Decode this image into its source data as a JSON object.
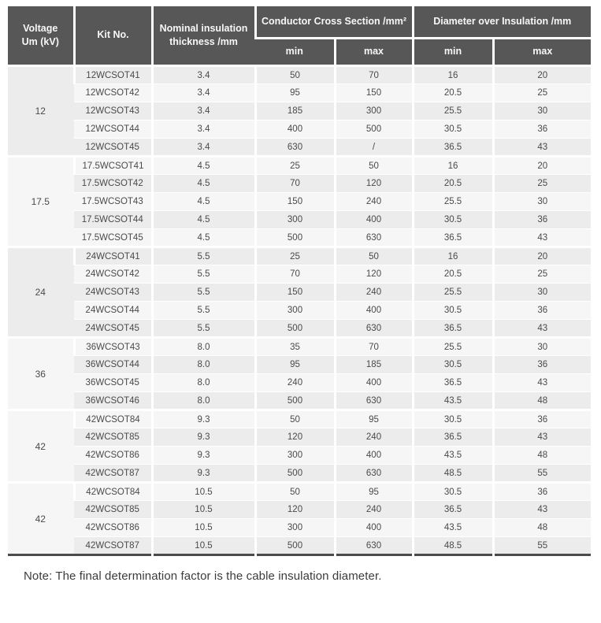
{
  "table": {
    "headers": {
      "voltage": "Voltage\nUm (kV)",
      "kit_no": "Kit No.",
      "nominal": "Nominal insulation\nthickness /mm",
      "conductor_cross_section": "Conductor Cross Section /mm²",
      "diameter_over_insulation": "Diameter over Insulation /mm",
      "min": "min",
      "max": "max"
    },
    "groups": [
      {
        "voltage": "12",
        "rows": [
          [
            "12WCSOT41",
            "3.4",
            "50",
            "70",
            "16",
            "20"
          ],
          [
            "12WCSOT42",
            "3.4",
            "95",
            "150",
            "20.5",
            "25"
          ],
          [
            "12WCSOT43",
            "3.4",
            "185",
            "300",
            "25.5",
            "30"
          ],
          [
            "12WCSOT44",
            "3.4",
            "400",
            "500",
            "30.5",
            "36"
          ],
          [
            "12WCSOT45",
            "3.4",
            "630",
            "/",
            "36.5",
            "43"
          ]
        ]
      },
      {
        "voltage": "17.5",
        "rows": [
          [
            "17.5WCSOT41",
            "4.5",
            "25",
            "50",
            "16",
            "20"
          ],
          [
            "17.5WCSOT42",
            "4.5",
            "70",
            "120",
            "20.5",
            "25"
          ],
          [
            "17.5WCSOT43",
            "4.5",
            "150",
            "240",
            "25.5",
            "30"
          ],
          [
            "17.5WCSOT44",
            "4.5",
            "300",
            "400",
            "30.5",
            "36"
          ],
          [
            "17.5WCSOT45",
            "4.5",
            "500",
            "630",
            "36.5",
            "43"
          ]
        ]
      },
      {
        "voltage": "24",
        "rows": [
          [
            "24WCSOT41",
            "5.5",
            "25",
            "50",
            "16",
            "20"
          ],
          [
            "24WCSOT42",
            "5.5",
            "70",
            "120",
            "20.5",
            "25"
          ],
          [
            "24WCSOT43",
            "5.5",
            "150",
            "240",
            "25.5",
            "30"
          ],
          [
            "24WCSOT44",
            "5.5",
            "300",
            "400",
            "30.5",
            "36"
          ],
          [
            "24WCSOT45",
            "5.5",
            "500",
            "630",
            "36.5",
            "43"
          ]
        ]
      },
      {
        "voltage": "36",
        "rows": [
          [
            "36WCSOT43",
            "8.0",
            "35",
            "70",
            "25.5",
            "30"
          ],
          [
            "36WCSOT44",
            "8.0",
            "95",
            "185",
            "30.5",
            "36"
          ],
          [
            "36WCSOT45",
            "8.0",
            "240",
            "400",
            "36.5",
            "43"
          ],
          [
            "36WCSOT46",
            "8.0",
            "500",
            "630",
            "43.5",
            "48"
          ]
        ]
      },
      {
        "voltage": "42",
        "rows": [
          [
            "42WCSOT84",
            "9.3",
            "50",
            "95",
            "30.5",
            "36"
          ],
          [
            "42WCSOT85",
            "9.3",
            "120",
            "240",
            "36.5",
            "43"
          ],
          [
            "42WCSOT86",
            "9.3",
            "300",
            "400",
            "43.5",
            "48"
          ],
          [
            "42WCSOT87",
            "9.3",
            "500",
            "630",
            "48.5",
            "55"
          ]
        ]
      },
      {
        "voltage": "42",
        "rows": [
          [
            "42WCSOT84",
            "10.5",
            "50",
            "95",
            "30.5",
            "36"
          ],
          [
            "42WCSOT85",
            "10.5",
            "120",
            "240",
            "36.5",
            "43"
          ],
          [
            "42WCSOT86",
            "10.5",
            "300",
            "400",
            "43.5",
            "48"
          ],
          [
            "42WCSOT87",
            "10.5",
            "500",
            "630",
            "48.5",
            "55"
          ]
        ]
      }
    ]
  },
  "colors": {
    "header_bg": "#575757",
    "row_dark": "#ececec",
    "row_light": "#f6f6f6",
    "bottom_rule": "#4b4b4c",
    "cell_text": "#4a4a4a"
  },
  "note": "Note: The final determination factor is the cable insulation diameter."
}
